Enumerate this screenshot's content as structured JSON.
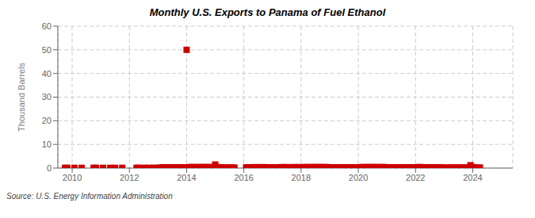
{
  "chart_data": {
    "type": "scatter",
    "title": "Monthly U.S. Exports to Panama of Fuel Ethanol",
    "ylabel": "Thousand Barrels",
    "annotation": "Source: U.S. Energy Information Administration",
    "color": "#cc0000",
    "marker": "square",
    "grid": true,
    "xlim": [
      2009.5,
      2025.4
    ],
    "ylim": [
      0,
      60
    ],
    "xticks": [
      2010,
      2012,
      2014,
      2016,
      2018,
      2020,
      2022,
      2024
    ],
    "yticks": [
      0,
      10,
      20,
      30,
      40,
      50,
      60
    ],
    "x": [
      2009.75,
      2009.83,
      2010.08,
      2010.33,
      2010.75,
      2010.83,
      2011.08,
      2011.33,
      2011.5,
      2011.75,
      2012.25,
      2012.33,
      2012.5,
      2012.67,
      2012.83,
      2012.92,
      2013.08,
      2013.17,
      2013.25,
      2013.33,
      2013.42,
      2013.5,
      2013.58,
      2013.67,
      2013.75,
      2013.83,
      2013.92,
      2014.0,
      2014.08,
      2014.17,
      2014.25,
      2014.33,
      2014.42,
      2014.5,
      2014.58,
      2014.67,
      2014.75,
      2014.83,
      2014.92,
      2015.0,
      2015.08,
      2015.17,
      2015.25,
      2015.33,
      2015.42,
      2015.5,
      2015.58,
      2015.67,
      2016.08,
      2016.17,
      2016.25,
      2016.33,
      2016.42,
      2016.5,
      2016.58,
      2016.67,
      2016.75,
      2016.83,
      2016.92,
      2017.08,
      2017.17,
      2017.25,
      2017.33,
      2017.42,
      2017.5,
      2017.58,
      2017.67,
      2017.75,
      2017.83,
      2017.92,
      2018.08,
      2018.17,
      2018.25,
      2018.33,
      2018.42,
      2018.5,
      2018.58,
      2018.67,
      2018.75,
      2018.83,
      2018.92,
      2019.08,
      2019.17,
      2019.25,
      2019.33,
      2019.42,
      2019.5,
      2019.58,
      2019.67,
      2019.75,
      2019.83,
      2019.92,
      2020.08,
      2020.17,
      2020.25,
      2020.33,
      2020.42,
      2020.5,
      2020.58,
      2020.67,
      2020.75,
      2020.83,
      2020.92,
      2021.08,
      2021.17,
      2021.25,
      2021.33,
      2021.42,
      2021.5,
      2021.58,
      2021.67,
      2021.75,
      2021.83,
      2021.92,
      2022.08,
      2022.17,
      2022.25,
      2022.33,
      2022.42,
      2022.5,
      2022.58,
      2022.67,
      2022.75,
      2022.83,
      2022.92,
      2023.08,
      2023.17,
      2023.25,
      2023.33,
      2023.42,
      2023.5,
      2023.58,
      2023.67,
      2023.75,
      2023.83,
      2023.92,
      2024.0,
      2024.08,
      2024.17,
      2024.25
    ],
    "values": [
      0.1,
      0.1,
      0.1,
      0.1,
      0.1,
      0.1,
      0.1,
      0.1,
      0.1,
      0.1,
      0.1,
      0.1,
      0.1,
      0.1,
      0.1,
      0.1,
      0.2,
      0.3,
      0.3,
      0.3,
      0.3,
      0.3,
      0.3,
      0.3,
      0.3,
      0.3,
      0.3,
      50.0,
      0.4,
      0.4,
      0.4,
      0.4,
      0.4,
      0.4,
      0.4,
      0.4,
      0.4,
      0.4,
      0.4,
      1.5,
      0.4,
      0.3,
      0.3,
      0.2,
      0.2,
      0.2,
      0.2,
      0.2,
      0.3,
      0.3,
      0.3,
      0.3,
      0.4,
      0.3,
      0.3,
      0.4,
      0.3,
      0.3,
      0.3,
      0.3,
      0.3,
      0.3,
      0.4,
      0.3,
      0.4,
      0.3,
      0.3,
      0.4,
      0.3,
      0.4,
      0.4,
      0.4,
      0.4,
      0.4,
      0.4,
      0.4,
      0.4,
      0.4,
      0.4,
      0.4,
      0.4,
      0.3,
      0.3,
      0.3,
      0.3,
      0.3,
      0.3,
      0.3,
      0.3,
      0.3,
      0.3,
      0.3,
      0.4,
      0.4,
      0.4,
      0.4,
      0.4,
      0.4,
      0.4,
      0.4,
      0.4,
      0.4,
      0.4,
      0.3,
      0.3,
      0.3,
      0.3,
      0.3,
      0.3,
      0.3,
      0.3,
      0.3,
      0.3,
      0.3,
      0.4,
      0.4,
      0.3,
      0.3,
      0.3,
      0.3,
      0.3,
      0.3,
      0.3,
      0.3,
      0.3,
      0.2,
      0.2,
      0.2,
      0.2,
      0.2,
      0.2,
      0.2,
      0.2,
      0.2,
      0.2,
      1.2,
      0.4,
      0.2,
      0.2,
      0.2
    ]
  }
}
